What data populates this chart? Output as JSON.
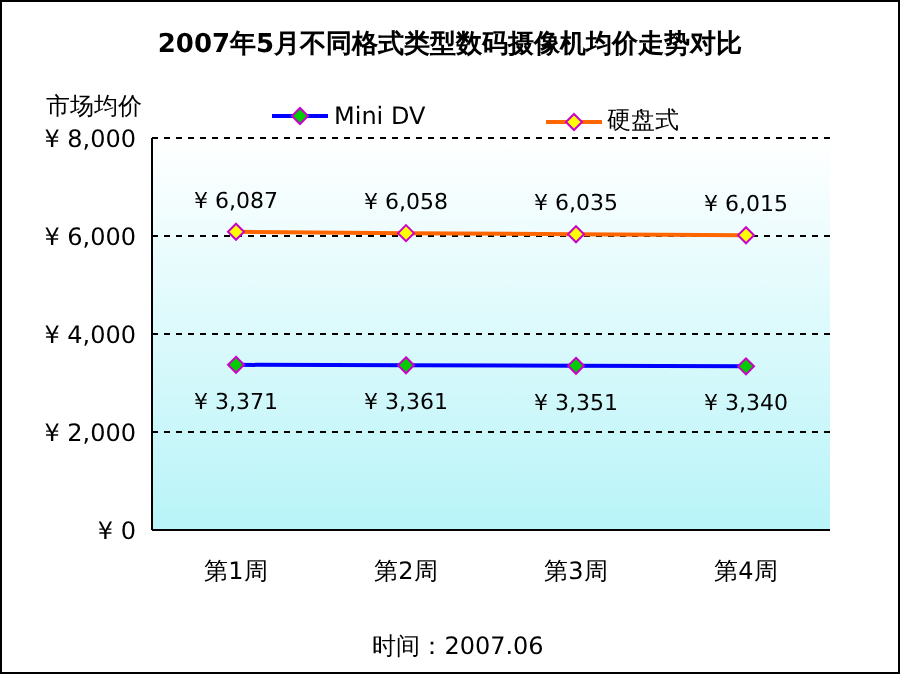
{
  "chart_data": {
    "type": "line",
    "title": "2007年5月不同格式类型数码摄像机均价走势对比",
    "ylabel": "市场均价",
    "categories": [
      "第1周",
      "第2周",
      "第3周",
      "第4周"
    ],
    "series": [
      {
        "name": "Mini DV",
        "color": "#0000ff",
        "values": [
          3371,
          3361,
          3351,
          3340
        ],
        "value_labels": [
          "¥ 3,371",
          "¥ 3,361",
          "¥ 3,351",
          "¥ 3,340"
        ]
      },
      {
        "name": "硬盘式",
        "color": "#ff6600",
        "values": [
          6087,
          6058,
          6035,
          6015
        ],
        "value_labels": [
          "¥ 6,087",
          "¥ 6,058",
          "¥ 6,035",
          "¥ 6,015"
        ]
      }
    ],
    "ylim": [
      0,
      8000
    ],
    "yticks": [
      {
        "value": 0,
        "label": "¥ 0"
      },
      {
        "value": 2000,
        "label": "¥ 2,000"
      },
      {
        "value": 4000,
        "label": "¥ 4,000"
      },
      {
        "value": 6000,
        "label": "¥ 6,000"
      },
      {
        "value": 8000,
        "label": "¥ 8,000"
      }
    ],
    "grid": "y",
    "legend": "top",
    "marker": "diamond",
    "line_style": "solid",
    "annotations": [
      "时间：2007.06"
    ]
  }
}
